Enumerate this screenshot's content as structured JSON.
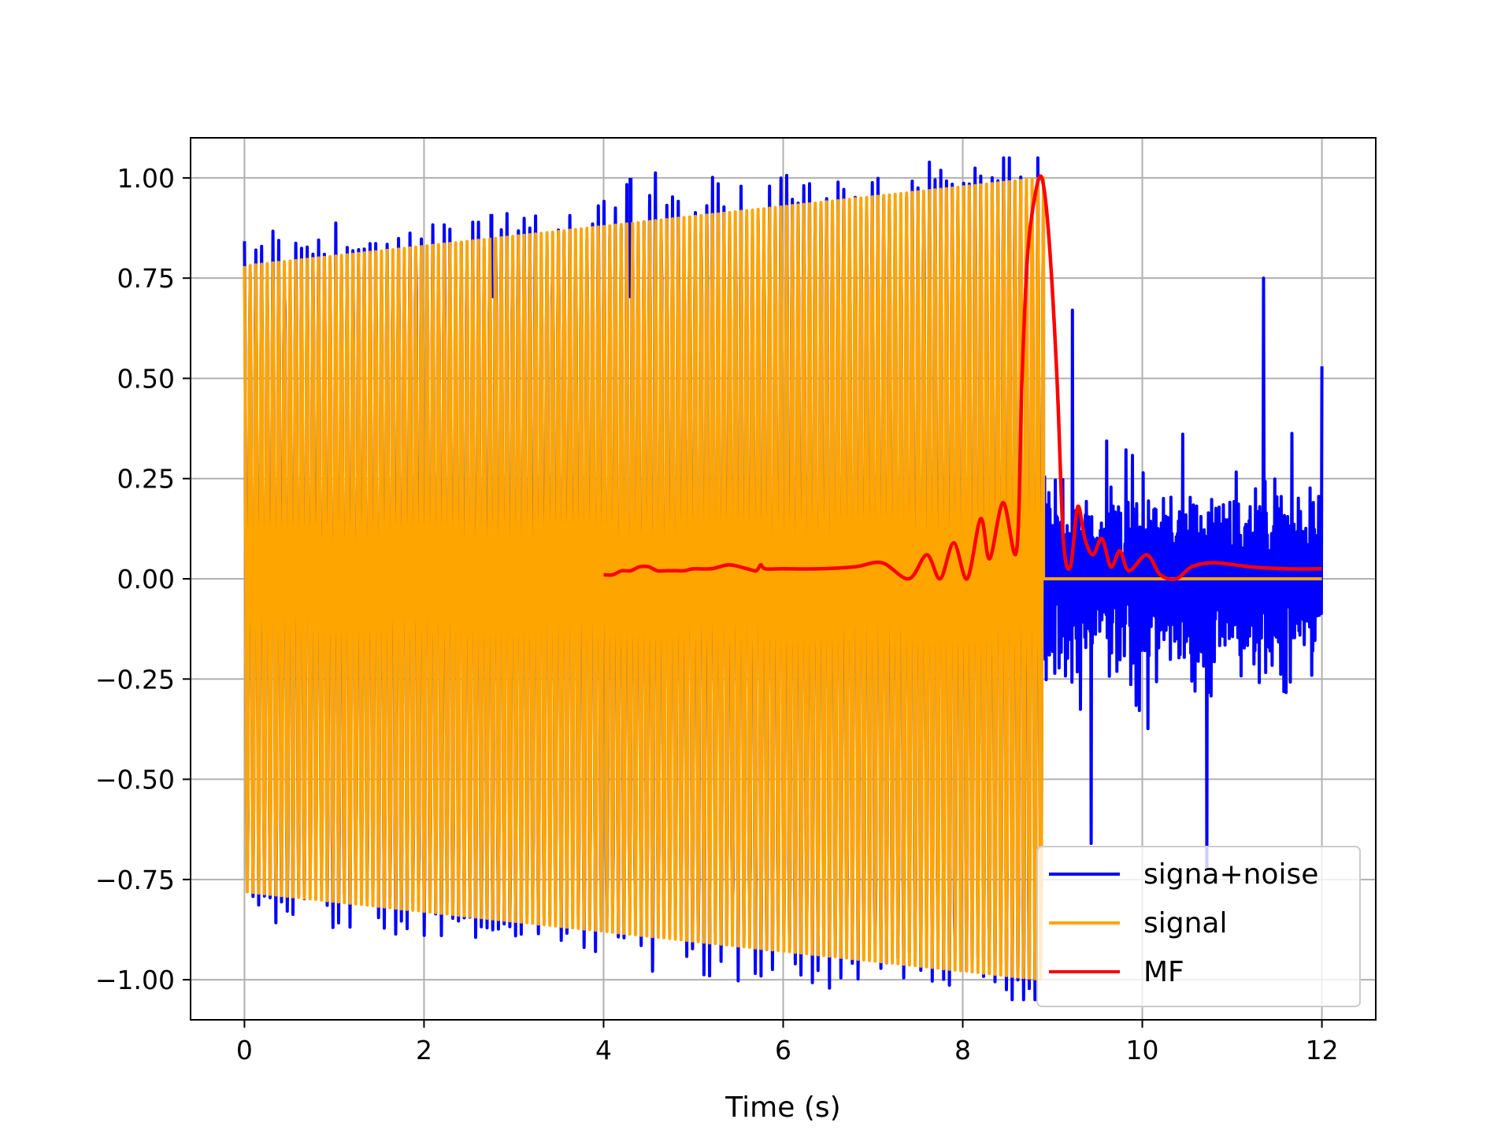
{
  "chart_data": {
    "type": "line",
    "title": "",
    "xlabel": "Time (s)",
    "ylabel": "",
    "xlim": [
      -0.6,
      12.6
    ],
    "ylim": [
      -1.1,
      1.1
    ],
    "grid": true,
    "legend_position": "lower-right",
    "x_ticks": [
      0,
      2,
      4,
      6,
      8,
      10,
      12
    ],
    "x_tick_labels": [
      "0",
      "2",
      "4",
      "6",
      "8",
      "10",
      "12"
    ],
    "y_ticks": [
      1.0,
      0.75,
      0.5,
      0.25,
      0.0,
      -0.25,
      -0.5,
      -0.75,
      -1.0
    ],
    "y_tick_labels": [
      "1.00",
      "0.75",
      "0.50",
      "0.25",
      "0.00",
      "−0.25",
      "−0.50",
      "−0.75",
      "−1.00"
    ],
    "series": [
      {
        "name": "signa+noise",
        "color": "#0000ff",
        "description": "signal plus noise; signal chirp region 0 to 8.9 s, then noise only from 8.9 to 12 s",
        "segment": [
          0,
          12
        ],
        "noise_peaks": [
          {
            "x": 2.75,
            "y": 0.91
          },
          {
            "x": 4.3,
            "y": 1.0
          },
          {
            "x": 9.22,
            "y": 0.67
          },
          {
            "x": 9.43,
            "y": -0.66
          },
          {
            "x": 11.35,
            "y": 0.75
          },
          {
            "x": 10.72,
            "y": -0.72
          },
          {
            "x": 12.0,
            "y": 0.53
          }
        ]
      },
      {
        "name": "signal",
        "color": "#ffa500",
        "description": "amplitude-growing oscillation (chirp) from 0 to 8.9 s, zero afterward",
        "envelope_x": [
          0,
          8.9
        ],
        "envelope_amplitude": [
          0.78,
          1.0
        ],
        "zero_after": [
          8.9,
          12
        ]
      },
      {
        "name": "MF",
        "color": "#ff0000",
        "description": "matched filter output, from 4 to 12 s, peaking at 1.0 near 8.88 s",
        "x": [
          4.0,
          4.1,
          4.2,
          4.3,
          4.4,
          4.5,
          4.6,
          4.7,
          4.8,
          4.9,
          5.0,
          5.2,
          5.4,
          5.6,
          5.7,
          5.75,
          5.8,
          6.0,
          6.4,
          6.8,
          7.1,
          7.4,
          7.6,
          7.75,
          7.9,
          8.05,
          8.2,
          8.3,
          8.45,
          8.6,
          8.66,
          8.72,
          8.8,
          8.88,
          8.96,
          9.05,
          9.12,
          9.2,
          9.28,
          9.36,
          9.45,
          9.55,
          9.65,
          9.75,
          9.85,
          10.05,
          10.2,
          10.38,
          10.55,
          10.8,
          11.2,
          11.6,
          12.0
        ],
        "y": [
          0.01,
          0.01,
          0.02,
          0.02,
          0.03,
          0.03,
          0.02,
          0.02,
          0.02,
          0.02,
          0.025,
          0.025,
          0.035,
          0.025,
          0.02,
          0.035,
          0.025,
          0.025,
          0.025,
          0.03,
          0.04,
          0.0,
          0.06,
          0.0,
          0.09,
          0.0,
          0.15,
          0.05,
          0.19,
          0.07,
          0.5,
          0.8,
          0.95,
          1.0,
          0.85,
          0.5,
          0.1,
          0.03,
          0.18,
          0.1,
          0.06,
          0.1,
          0.03,
          0.07,
          0.02,
          0.06,
          0.01,
          0.0,
          0.03,
          0.04,
          0.03,
          0.025,
          0.025
        ]
      }
    ]
  }
}
